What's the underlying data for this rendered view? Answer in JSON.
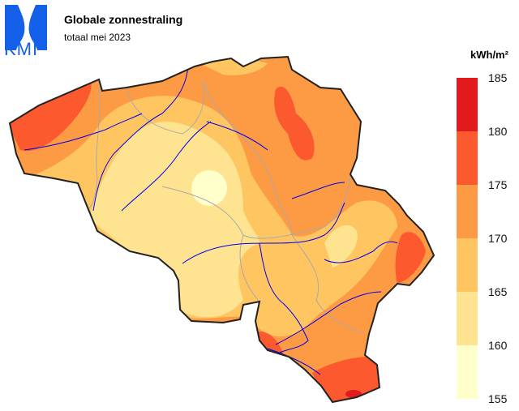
{
  "header": {
    "title": "Globale zonnestraling",
    "subtitle": "totaal mei 2023",
    "logo_text": "KMI"
  },
  "legend": {
    "unit": "kWh/m²",
    "ticks": [
      "185",
      "180",
      "175",
      "170",
      "165",
      "160",
      "155"
    ],
    "classes": [
      {
        "range": [
          180,
          185
        ],
        "color": "#e31a1c"
      },
      {
        "range": [
          175,
          180
        ],
        "color": "#fc5a2e"
      },
      {
        "range": [
          170,
          175
        ],
        "color": "#fd9a44"
      },
      {
        "range": [
          165,
          170
        ],
        "color": "#fec561"
      },
      {
        "range": [
          160,
          165
        ],
        "color": "#fee391"
      },
      {
        "range": [
          155,
          160
        ],
        "color": "#ffffcc"
      }
    ]
  },
  "colors": {
    "border": "#222222",
    "rivers": "#0000ee",
    "provinces": "#aaaaaa",
    "logo": "#1560e8"
  }
}
